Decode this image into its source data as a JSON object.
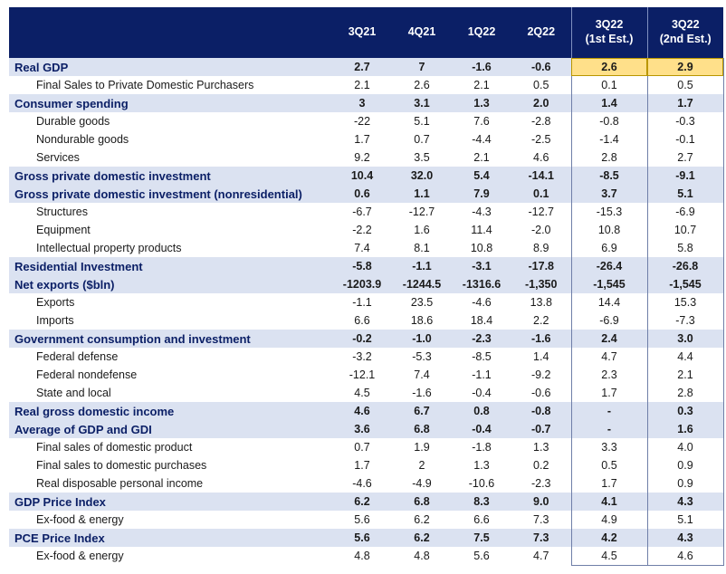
{
  "table": {
    "header": {
      "label": "",
      "columns": [
        "3Q21",
        "4Q21",
        "1Q22",
        "2Q22"
      ],
      "est1_top": "3Q22",
      "est1_bottom": "(1st Est.)",
      "est2_top": "3Q22",
      "est2_bottom": "(2nd Est.)"
    },
    "rows": [
      {
        "level": 1,
        "label": "Real GDP",
        "values": [
          "2.7",
          "7",
          "-1.6",
          "-0.6",
          "2.6",
          "2.9"
        ],
        "highlight": true
      },
      {
        "level": 2,
        "label": "Final Sales to Private Domestic Purchasers",
        "values": [
          "2.1",
          "2.6",
          "2.1",
          "0.5",
          "0.1",
          "0.5"
        ]
      },
      {
        "level": 1,
        "label": "Consumer spending",
        "values": [
          "3",
          "3.1",
          "1.3",
          "2.0",
          "1.4",
          "1.7"
        ]
      },
      {
        "level": 2,
        "label": "Durable goods",
        "values": [
          "-22",
          "5.1",
          "7.6",
          "-2.8",
          "-0.8",
          "-0.3"
        ]
      },
      {
        "level": 2,
        "label": "Nondurable goods",
        "values": [
          "1.7",
          "0.7",
          "-4.4",
          "-2.5",
          "-1.4",
          "-0.1"
        ]
      },
      {
        "level": 2,
        "label": "Services",
        "values": [
          "9.2",
          "3.5",
          "2.1",
          "4.6",
          "2.8",
          "2.7"
        ]
      },
      {
        "level": 1,
        "label": "Gross private domestic investment",
        "values": [
          "10.4",
          "32.0",
          "5.4",
          "-14.1",
          "-8.5",
          "-9.1"
        ]
      },
      {
        "level": 1,
        "label": "Gross private domestic investment (nonresidential)",
        "values": [
          "0.6",
          "1.1",
          "7.9",
          "0.1",
          "3.7",
          "5.1"
        ]
      },
      {
        "level": 2,
        "label": "Structures",
        "values": [
          "-6.7",
          "-12.7",
          "-4.3",
          "-12.7",
          "-15.3",
          "-6.9"
        ]
      },
      {
        "level": 2,
        "label": "Equipment",
        "values": [
          "-2.2",
          "1.6",
          "11.4",
          "-2.0",
          "10.8",
          "10.7"
        ]
      },
      {
        "level": 2,
        "label": "Intellectual property products",
        "values": [
          "7.4",
          "8.1",
          "10.8",
          "8.9",
          "6.9",
          "5.8"
        ]
      },
      {
        "level": 1,
        "label": "Residential Investment",
        "values": [
          "-5.8",
          "-1.1",
          "-3.1",
          "-17.8",
          "-26.4",
          "-26.8"
        ]
      },
      {
        "level": 1,
        "label": "Net exports ($bln)",
        "values": [
          "-1203.9",
          "-1244.5",
          "-1316.6",
          "-1,350",
          "-1,545",
          "-1,545"
        ]
      },
      {
        "level": 2,
        "label": "Exports",
        "values": [
          "-1.1",
          "23.5",
          "-4.6",
          "13.8",
          "14.4",
          "15.3"
        ]
      },
      {
        "level": 2,
        "label": "Imports",
        "values": [
          "6.6",
          "18.6",
          "18.4",
          "2.2",
          "-6.9",
          "-7.3"
        ]
      },
      {
        "level": 1,
        "label": "Government consumption and investment",
        "values": [
          "-0.2",
          "-1.0",
          "-2.3",
          "-1.6",
          "2.4",
          "3.0"
        ]
      },
      {
        "level": 2,
        "label": "Federal defense",
        "values": [
          "-3.2",
          "-5.3",
          "-8.5",
          "1.4",
          "4.7",
          "4.4"
        ]
      },
      {
        "level": 2,
        "label": "Federal nondefense",
        "values": [
          "-12.1",
          "7.4",
          "-1.1",
          "-9.2",
          "2.3",
          "2.1"
        ]
      },
      {
        "level": 2,
        "label": "State and local",
        "values": [
          "4.5",
          "-1.6",
          "-0.4",
          "-0.6",
          "1.7",
          "2.8"
        ]
      },
      {
        "level": 1,
        "label": "Real gross domestic income",
        "values": [
          "4.6",
          "6.7",
          "0.8",
          "-0.8",
          "-",
          "0.3"
        ]
      },
      {
        "level": 1,
        "label": "Average of GDP and GDI",
        "values": [
          "3.6",
          "6.8",
          "-0.4",
          "-0.7",
          "-",
          "1.6"
        ]
      },
      {
        "level": 2,
        "label": "Final sales of domestic product",
        "values": [
          "0.7",
          "1.9",
          "-1.8",
          "1.3",
          "3.3",
          "4.0"
        ]
      },
      {
        "level": 2,
        "label": "Final sales to domestic purchases",
        "values": [
          "1.7",
          "2",
          "1.3",
          "0.2",
          "0.5",
          "0.9"
        ]
      },
      {
        "level": 2,
        "label": "Real disposable personal income",
        "values": [
          "-4.6",
          "-4.9",
          "-10.6",
          "-2.3",
          "1.7",
          "0.9"
        ]
      },
      {
        "level": 1,
        "label": "GDP Price Index",
        "values": [
          "6.2",
          "6.8",
          "8.3",
          "9.0",
          "4.1",
          "4.3"
        ]
      },
      {
        "level": 2,
        "label": "Ex-food & energy",
        "values": [
          "5.6",
          "6.2",
          "6.6",
          "7.3",
          "4.9",
          "5.1"
        ]
      },
      {
        "level": 1,
        "label": "PCE Price Index",
        "values": [
          "5.6",
          "6.2",
          "7.5",
          "7.3",
          "4.2",
          "4.3"
        ]
      },
      {
        "level": 2,
        "label": "Ex-food & energy",
        "values": [
          "4.8",
          "4.8",
          "5.6",
          "4.7",
          "4.5",
          "4.6"
        ]
      }
    ],
    "colors": {
      "header_bg": "#0b1f66",
      "section_bg": "#dbe2f1",
      "highlight_bg": "#ffe08a"
    }
  }
}
